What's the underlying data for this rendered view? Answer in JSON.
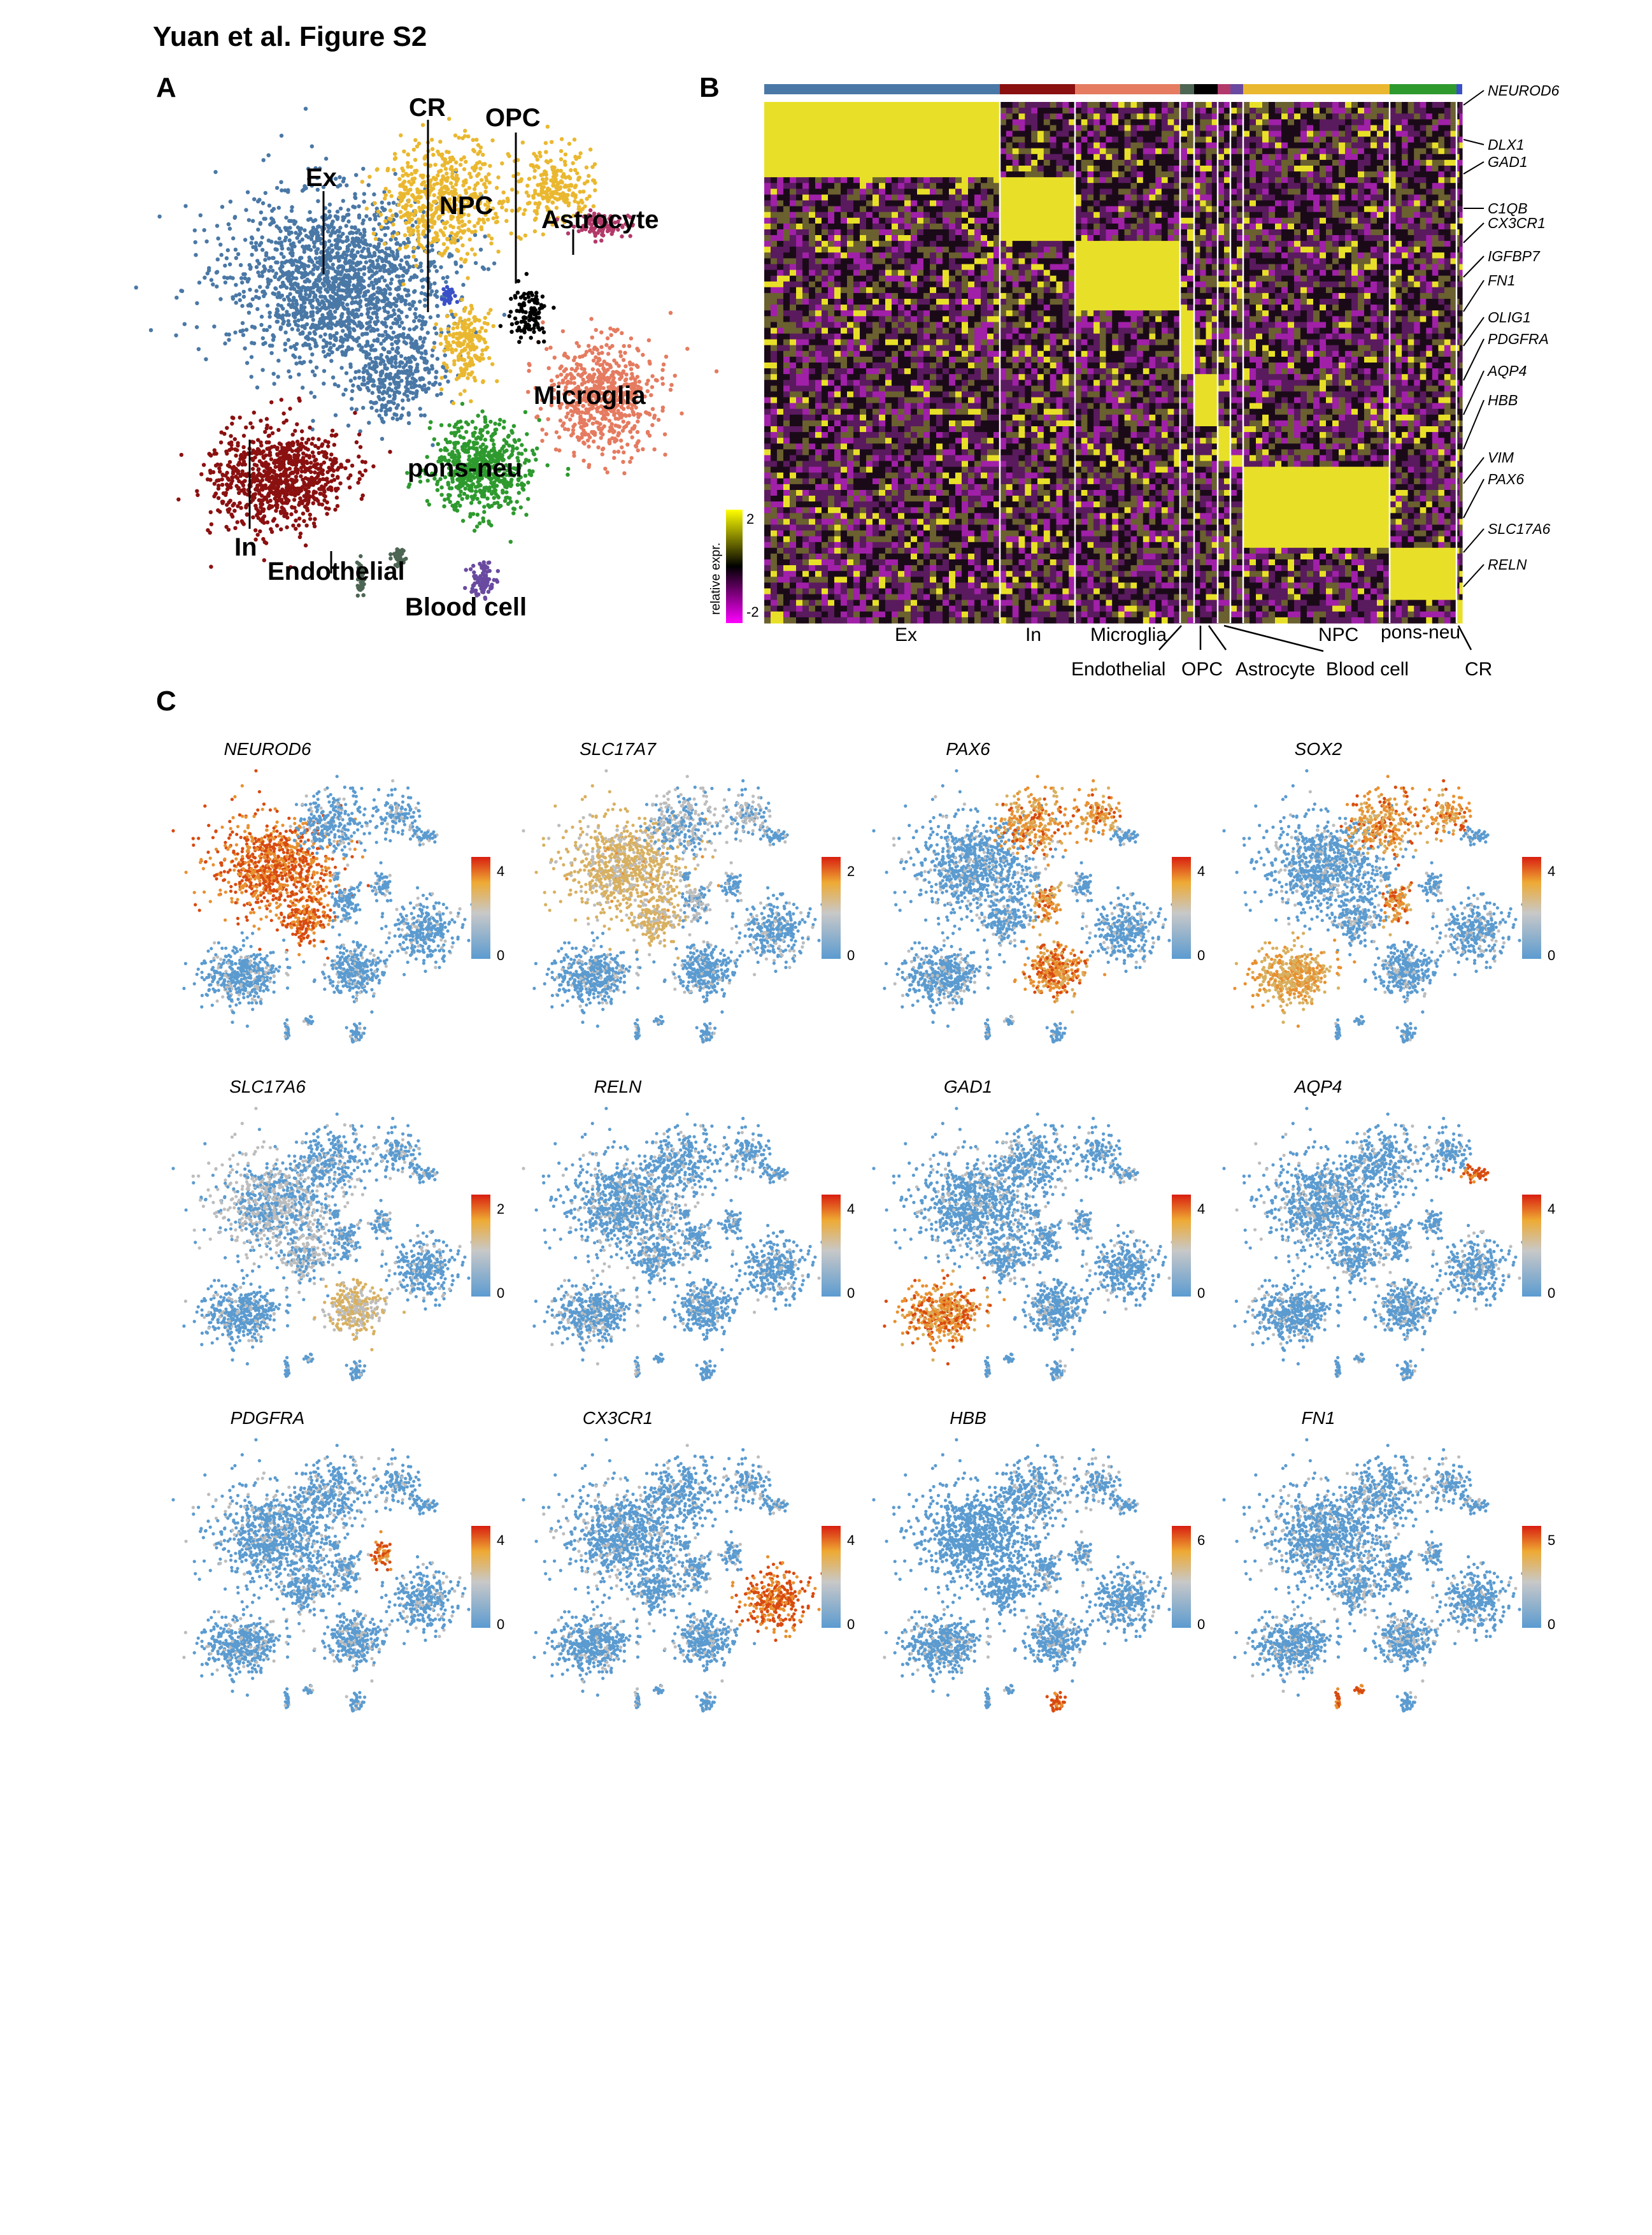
{
  "title": "Yuan et al. Figure S2",
  "panels": {
    "a": "A",
    "b": "B",
    "c": "C"
  },
  "colors": {
    "Ex": "#4a78a6",
    "In": "#8b1010",
    "Microglia": "#e57b60",
    "Endothelial": "#4d6654",
    "OPC": "#000000",
    "Astrocyte": "#b23a6a",
    "Blood cell": "#6a4aa0",
    "NPC": "#eab830",
    "pons-neu": "#2e9a2e",
    "CR": "#3a50c8",
    "heat_low": "#ff00ff",
    "heat_mid": "#000000",
    "heat_high": "#ffff00",
    "fp_low": "#5b9bd0",
    "fp_mid": "#c8c8c8",
    "fp_high": "#d81e10"
  },
  "tsne_labels": {
    "ex": "Ex",
    "cr": "CR",
    "opc": "OPC",
    "npc": "NPC",
    "astrocyte": "Astrocyte",
    "microglia": "Microglia",
    "pons": "pons-neu",
    "in": "In",
    "endothelial": "Endothelial",
    "blood": "Blood cell"
  },
  "heatmap": {
    "legend_title": "relative expr.",
    "legend_max": "2",
    "legend_min": "-2",
    "clusters": [
      "Ex",
      "In",
      "Microglia",
      "Endothelial",
      "OPC",
      "Astrocyte",
      "Blood cell",
      "NPC",
      "pons-neu",
      "CR"
    ],
    "genes": [
      "NEUROD6",
      "DLX1",
      "GAD1",
      "C1QB",
      "CX3CR1",
      "IGFBP7",
      "FN1",
      "OLIG1",
      "PDGFRA",
      "AQP4",
      "HBB",
      "VIM",
      "PAX6",
      "SLC17A6",
      "RELN"
    ]
  },
  "feature_plots": [
    {
      "gene": "NEUROD6",
      "max": "4",
      "min": "0"
    },
    {
      "gene": "SLC17A7",
      "max": "2",
      "min": "0"
    },
    {
      "gene": "PAX6",
      "max": "4",
      "min": "0"
    },
    {
      "gene": "SOX2",
      "max": "4",
      "min": "0"
    },
    {
      "gene": "SLC17A6",
      "max": "2",
      "min": "0"
    },
    {
      "gene": "RELN",
      "max": "4",
      "min": "0"
    },
    {
      "gene": "GAD1",
      "max": "4",
      "min": "0"
    },
    {
      "gene": "AQP4",
      "max": "4",
      "min": "0"
    },
    {
      "gene": "PDGFRA",
      "max": "4",
      "min": "0"
    },
    {
      "gene": "CX3CR1",
      "max": "4",
      "min": "0"
    },
    {
      "gene": "HBB",
      "max": "6",
      "min": "0"
    },
    {
      "gene": "FN1",
      "max": "5",
      "min": "0"
    }
  ]
}
